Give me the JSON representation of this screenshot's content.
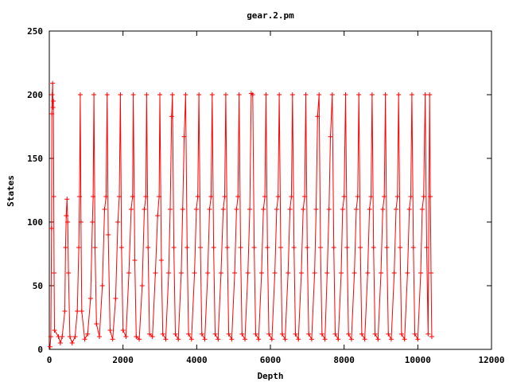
{
  "chart_data": {
    "type": "scatter",
    "title": "gear.2.pm",
    "xlabel": "Depth",
    "ylabel": "States",
    "xlim": [
      0,
      12000
    ],
    "ylim": [
      0,
      250
    ],
    "x_ticks": [
      "0",
      "2000",
      "4000",
      "6000",
      "8000",
      "10000",
      "12000"
    ],
    "x_tick_values": [
      0,
      2000,
      4000,
      6000,
      8000,
      10000,
      12000
    ],
    "y_ticks": [
      "0",
      "50",
      "100",
      "150",
      "200",
      "250"
    ],
    "y_tick_values": [
      0,
      50,
      100,
      150,
      200,
      250
    ],
    "grid": false,
    "legend": "none",
    "marker": "plus",
    "color": "#ff0000",
    "series": [
      {
        "points": [
          [
            20,
            2
          ],
          [
            40,
            10
          ],
          [
            60,
            95
          ],
          [
            70,
            185
          ],
          [
            80,
            200
          ],
          [
            90,
            209
          ],
          [
            100,
            190
          ],
          [
            110,
            195
          ],
          [
            120,
            120
          ],
          [
            130,
            60
          ],
          [
            140,
            15
          ],
          [
            250,
            10
          ],
          [
            300,
            5
          ],
          [
            350,
            10
          ],
          [
            420,
            30
          ],
          [
            440,
            80
          ],
          [
            460,
            105
          ],
          [
            480,
            118
          ],
          [
            500,
            100
          ],
          [
            520,
            60
          ],
          [
            560,
            10
          ],
          [
            620,
            5
          ],
          [
            700,
            10
          ],
          [
            760,
            30
          ],
          [
            800,
            80
          ],
          [
            820,
            120
          ],
          [
            840,
            200
          ],
          [
            860,
            100
          ],
          [
            880,
            30
          ],
          [
            960,
            8
          ],
          [
            1040,
            12
          ],
          [
            1120,
            40
          ],
          [
            1170,
            100
          ],
          [
            1190,
            120
          ],
          [
            1210,
            200
          ],
          [
            1240,
            80
          ],
          [
            1280,
            20
          ],
          [
            1360,
            10
          ],
          [
            1440,
            50
          ],
          [
            1500,
            110
          ],
          [
            1540,
            120
          ],
          [
            1570,
            200
          ],
          [
            1600,
            90
          ],
          [
            1650,
            15
          ],
          [
            1720,
            8
          ],
          [
            1800,
            40
          ],
          [
            1860,
            100
          ],
          [
            1900,
            120
          ],
          [
            1930,
            200
          ],
          [
            1960,
            80
          ],
          [
            2000,
            15
          ],
          [
            2080,
            10
          ],
          [
            2160,
            60
          ],
          [
            2220,
            110
          ],
          [
            2260,
            120
          ],
          [
            2280,
            200
          ],
          [
            2320,
            70
          ],
          [
            2360,
            10
          ],
          [
            2440,
            8
          ],
          [
            2520,
            50
          ],
          [
            2580,
            110
          ],
          [
            2620,
            120
          ],
          [
            2640,
            200
          ],
          [
            2680,
            80
          ],
          [
            2720,
            12
          ],
          [
            2800,
            10
          ],
          [
            2880,
            60
          ],
          [
            2940,
            105
          ],
          [
            2980,
            120
          ],
          [
            3000,
            200
          ],
          [
            3040,
            70
          ],
          [
            3080,
            12
          ],
          [
            3160,
            8
          ],
          [
            3240,
            60
          ],
          [
            3280,
            110
          ],
          [
            3320,
            183
          ],
          [
            3340,
            200
          ],
          [
            3380,
            80
          ],
          [
            3420,
            12
          ],
          [
            3500,
            8
          ],
          [
            3580,
            60
          ],
          [
            3620,
            110
          ],
          [
            3660,
            167
          ],
          [
            3700,
            200
          ],
          [
            3740,
            80
          ],
          [
            3780,
            12
          ],
          [
            3860,
            8
          ],
          [
            3940,
            60
          ],
          [
            3990,
            110
          ],
          [
            4030,
            120
          ],
          [
            4060,
            200
          ],
          [
            4100,
            80
          ],
          [
            4140,
            12
          ],
          [
            4220,
            8
          ],
          [
            4300,
            60
          ],
          [
            4350,
            110
          ],
          [
            4390,
            120
          ],
          [
            4420,
            200
          ],
          [
            4460,
            80
          ],
          [
            4500,
            12
          ],
          [
            4580,
            8
          ],
          [
            4660,
            60
          ],
          [
            4720,
            110
          ],
          [
            4760,
            120
          ],
          [
            4790,
            200
          ],
          [
            4830,
            80
          ],
          [
            4870,
            12
          ],
          [
            4950,
            8
          ],
          [
            5030,
            60
          ],
          [
            5080,
            110
          ],
          [
            5120,
            120
          ],
          [
            5150,
            200
          ],
          [
            5190,
            80
          ],
          [
            5230,
            12
          ],
          [
            5310,
            8
          ],
          [
            5390,
            60
          ],
          [
            5440,
            110
          ],
          [
            5480,
            201
          ],
          [
            5520,
            200
          ],
          [
            5560,
            80
          ],
          [
            5600,
            12
          ],
          [
            5680,
            8
          ],
          [
            5760,
            60
          ],
          [
            5810,
            110
          ],
          [
            5850,
            120
          ],
          [
            5880,
            200
          ],
          [
            5920,
            80
          ],
          [
            5960,
            12
          ],
          [
            6040,
            8
          ],
          [
            6120,
            60
          ],
          [
            6170,
            110
          ],
          [
            6210,
            120
          ],
          [
            6240,
            200
          ],
          [
            6280,
            80
          ],
          [
            6320,
            12
          ],
          [
            6400,
            8
          ],
          [
            6480,
            60
          ],
          [
            6530,
            110
          ],
          [
            6570,
            120
          ],
          [
            6600,
            200
          ],
          [
            6640,
            80
          ],
          [
            6680,
            12
          ],
          [
            6760,
            8
          ],
          [
            6840,
            60
          ],
          [
            6890,
            110
          ],
          [
            6930,
            120
          ],
          [
            6960,
            200
          ],
          [
            7000,
            80
          ],
          [
            7040,
            12
          ],
          [
            7120,
            8
          ],
          [
            7200,
            60
          ],
          [
            7240,
            110
          ],
          [
            7280,
            183
          ],
          [
            7320,
            200
          ],
          [
            7360,
            80
          ],
          [
            7400,
            12
          ],
          [
            7480,
            8
          ],
          [
            7540,
            60
          ],
          [
            7590,
            110
          ],
          [
            7630,
            167
          ],
          [
            7680,
            200
          ],
          [
            7720,
            80
          ],
          [
            7760,
            12
          ],
          [
            7840,
            8
          ],
          [
            7920,
            60
          ],
          [
            7960,
            110
          ],
          [
            8000,
            120
          ],
          [
            8040,
            200
          ],
          [
            8080,
            80
          ],
          [
            8120,
            12
          ],
          [
            8200,
            8
          ],
          [
            8280,
            60
          ],
          [
            8330,
            110
          ],
          [
            8370,
            120
          ],
          [
            8400,
            200
          ],
          [
            8440,
            80
          ],
          [
            8480,
            12
          ],
          [
            8560,
            8
          ],
          [
            8640,
            60
          ],
          [
            8690,
            110
          ],
          [
            8730,
            120
          ],
          [
            8760,
            200
          ],
          [
            8800,
            80
          ],
          [
            8840,
            12
          ],
          [
            8920,
            8
          ],
          [
            9000,
            60
          ],
          [
            9050,
            110
          ],
          [
            9090,
            120
          ],
          [
            9120,
            200
          ],
          [
            9160,
            80
          ],
          [
            9200,
            12
          ],
          [
            9280,
            8
          ],
          [
            9360,
            60
          ],
          [
            9410,
            110
          ],
          [
            9450,
            120
          ],
          [
            9480,
            200
          ],
          [
            9520,
            80
          ],
          [
            9560,
            12
          ],
          [
            9640,
            8
          ],
          [
            9720,
            60
          ],
          [
            9770,
            110
          ],
          [
            9810,
            120
          ],
          [
            9840,
            200
          ],
          [
            9880,
            80
          ],
          [
            9920,
            12
          ],
          [
            10000,
            8
          ],
          [
            10080,
            60
          ],
          [
            10120,
            110
          ],
          [
            10160,
            120
          ],
          [
            10200,
            200
          ],
          [
            10240,
            80
          ],
          [
            10280,
            12
          ],
          [
            10320,
            200
          ],
          [
            10340,
            120
          ],
          [
            10360,
            60
          ],
          [
            10380,
            10
          ]
        ]
      }
    ]
  }
}
